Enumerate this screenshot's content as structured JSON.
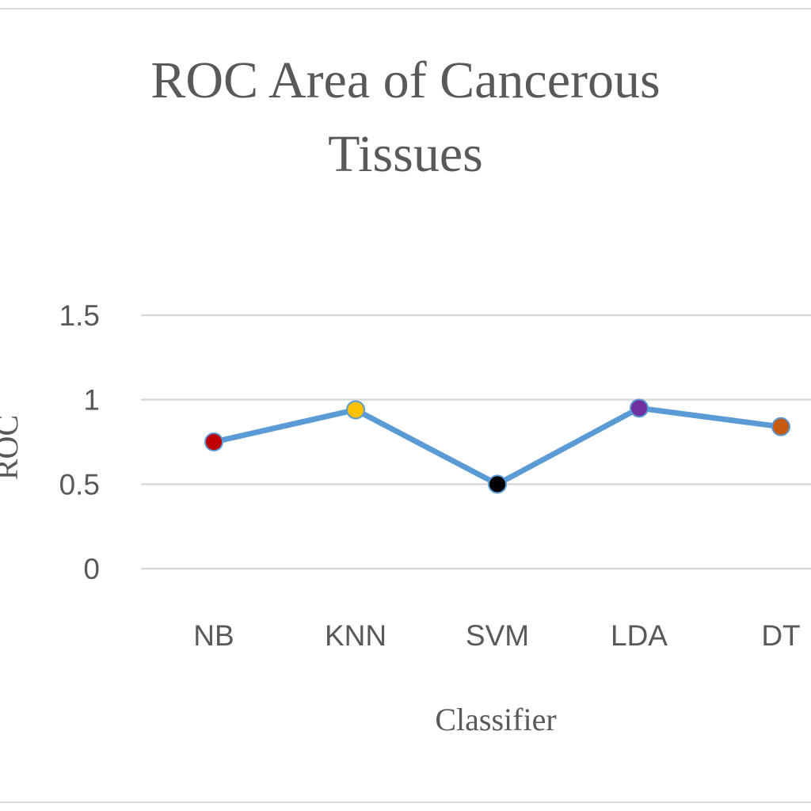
{
  "chart_data": {
    "type": "line",
    "title_line1": "ROC Area of Cancerous",
    "title_line2": "Tissues",
    "xlabel": "Classifier",
    "ylabel": "ROC",
    "categories": [
      "NB",
      "KNN",
      "SVM",
      "LDA",
      "DT"
    ],
    "series": [
      {
        "values": [
          0.75,
          0.94,
          0.5,
          0.95,
          0.84
        ],
        "line_color": "#5b9bd5",
        "marker_colors": [
          "#c00000",
          "#ffc000",
          "#000000",
          "#7030a0",
          "#c55a11"
        ]
      }
    ],
    "ylim": [
      0,
      1.5
    ],
    "yticks": [
      "0",
      "0.5",
      "1",
      "1.5"
    ],
    "grid": true,
    "legend": "none"
  }
}
